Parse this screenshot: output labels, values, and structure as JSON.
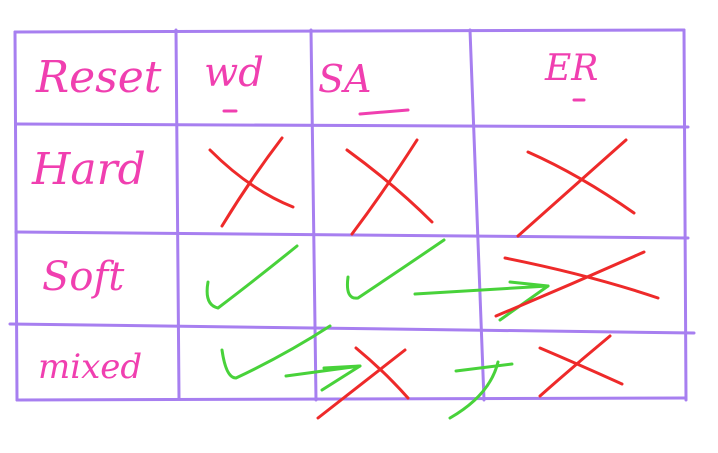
{
  "colors": {
    "grid": "#a77ff0",
    "label_ink": "#f03fb0",
    "cross_ink": "#ee2a2a",
    "tick_ink": "#48d23a"
  },
  "table": {
    "header_labels": [
      "Reset",
      "wd",
      "SA",
      "ER"
    ],
    "row_labels": [
      "Hard",
      "Soft",
      "mixed"
    ],
    "cells": [
      [
        "cross-mark",
        "cross-mark",
        "cross-mark"
      ],
      [
        "check-mark",
        "check-mark",
        "crossed-out-arrow"
      ],
      [
        "check-mark",
        "arrow-to-cross",
        "arrow-to-cross"
      ]
    ]
  }
}
